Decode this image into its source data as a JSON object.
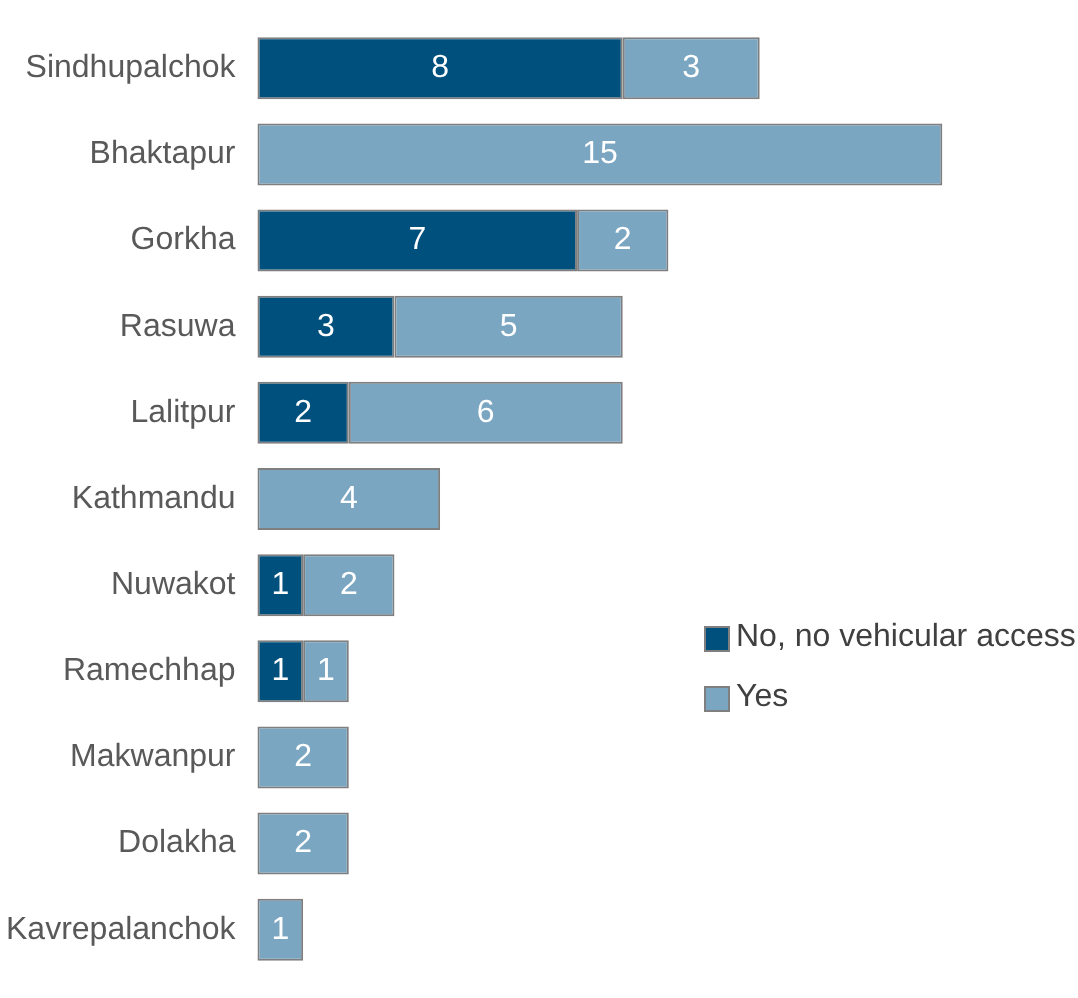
{
  "chart_data": {
    "type": "bar",
    "orientation": "horizontal",
    "stacked": true,
    "categories": [
      "Sindhupalchok",
      "Bhaktapur",
      "Gorkha",
      "Rasuwa",
      "Lalitpur",
      "Kathmandu",
      "Nuwakot",
      "Ramechhap",
      "Makwanpur",
      "Dolakha",
      "Kavrepalanchok"
    ],
    "series": [
      {
        "name": "No, no vehicular access",
        "color": "#00507d",
        "values": [
          8,
          0,
          7,
          3,
          2,
          0,
          1,
          1,
          0,
          0,
          0
        ],
        "value_labels": [
          "8",
          null,
          "7",
          "3",
          "2",
          null,
          "1",
          "1",
          null,
          null,
          null
        ]
      },
      {
        "name": "Yes",
        "color": "#7aa6c2",
        "values": [
          3,
          15,
          2,
          5,
          6,
          4,
          2,
          1,
          2,
          2,
          1
        ],
        "value_labels": [
          "3",
          "15",
          "2",
          "5",
          "6",
          "4",
          "2",
          "1",
          "2",
          "2",
          "1"
        ]
      }
    ],
    "legend": "right"
  }
}
